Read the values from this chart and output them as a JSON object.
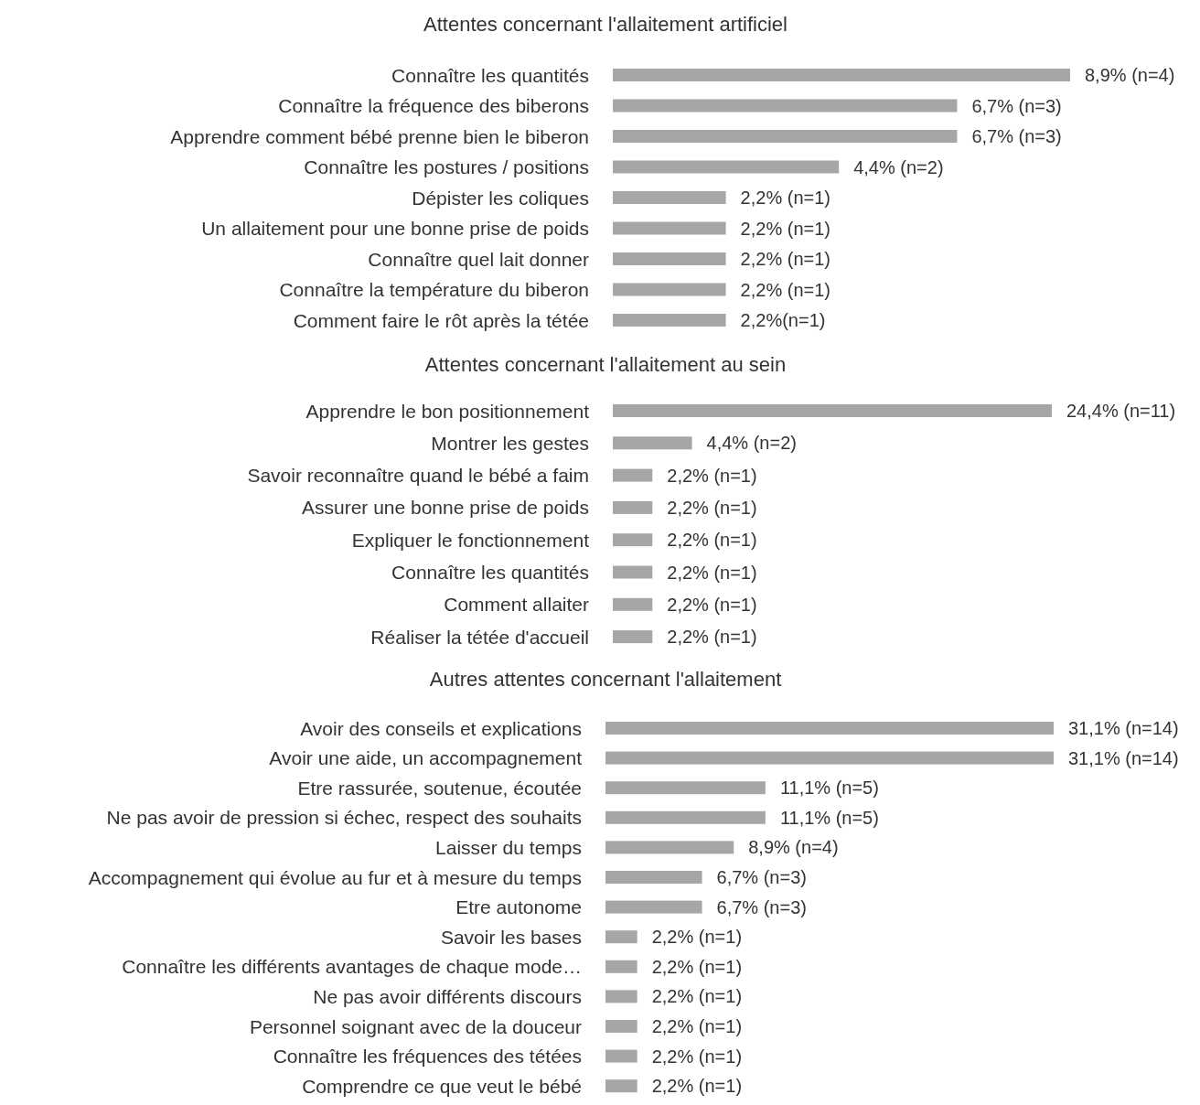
{
  "chart_data": [
    {
      "type": "bar",
      "orientation": "horizontal",
      "title": "Attentes concernant l'allaitement artificiel",
      "color": "#a6a6a6",
      "categories": [
        "Connaître les quantités",
        "Connaître la fréquence des biberons",
        "Apprendre comment bébé prenne bien le biberon",
        "Connaître les postures / positions",
        "Dépister les coliques",
        "Un allaitement pour une bonne prise de poids",
        "Connaître quel lait donner",
        "Connaître la température du biberon",
        "Comment faire le rôt après la tétée"
      ],
      "values": [
        8.9,
        6.7,
        6.7,
        4.4,
        2.2,
        2.2,
        2.2,
        2.2,
        2.2
      ],
      "value_labels": [
        "8,9% (n=4)",
        "6,7% (n=3)",
        "6,7% (n=3)",
        "4,4% (n=2)",
        "2,2% (n=1)",
        "2,2% (n=1)",
        "2,2% (n=1)",
        "2,2% (n=1)",
        "2,2%(n=1)"
      ]
    },
    {
      "type": "bar",
      "orientation": "horizontal",
      "title": "Attentes concernant l'allaitement au sein",
      "color": "#a6a6a6",
      "categories": [
        "Apprendre le bon positionnement",
        "Montrer les gestes",
        "Savoir reconnaître quand le bébé a faim",
        "Assurer une bonne prise de poids",
        "Expliquer le fonctionnement",
        "Connaître les quantités",
        "Comment allaiter",
        "Réaliser la tétée d'accueil"
      ],
      "values": [
        24.4,
        4.4,
        2.2,
        2.2,
        2.2,
        2.2,
        2.2,
        2.2
      ],
      "value_labels": [
        "24,4% (n=11)",
        "4,4% (n=2)",
        "2,2% (n=1)",
        "2,2% (n=1)",
        "2,2% (n=1)",
        "2,2% (n=1)",
        "2,2% (n=1)",
        "2,2% (n=1)"
      ]
    },
    {
      "type": "bar",
      "orientation": "horizontal",
      "title": "Autres attentes concernant l'allaitement",
      "color": "#a6a6a6",
      "categories": [
        "Avoir des conseils et explications",
        "Avoir une aide, un accompagnement",
        "Etre rassurée, soutenue, écoutée",
        "Ne pas avoir de pression si échec, respect des souhaits",
        "Laisser du temps",
        "Accompagnement qui évolue au fur et à mesure du temps",
        "Etre autonome",
        "Savoir les bases",
        "Connaître les différents avantages de chaque mode…",
        "Ne pas avoir différents discours",
        "Personnel soignant avec de la douceur",
        "Connaître les fréquences des tétées",
        "Comprendre ce que veut le bébé"
      ],
      "values": [
        31.1,
        31.1,
        11.1,
        11.1,
        8.9,
        6.7,
        6.7,
        2.2,
        2.2,
        2.2,
        2.2,
        2.2,
        2.2
      ],
      "value_labels": [
        "31,1% (n=14)",
        "31,1% (n=14)",
        "11,1% (n=5)",
        "11,1% (n=5)",
        "8,9% (n=4)",
        "6,7% (n=3)",
        "6,7% (n=3)",
        "2,2% (n=1)",
        "2,2% (n=1)",
        "2,2% (n=1)",
        "2,2% (n=1)",
        "2,2% (n=1)",
        "2,2% (n=1)"
      ]
    }
  ]
}
